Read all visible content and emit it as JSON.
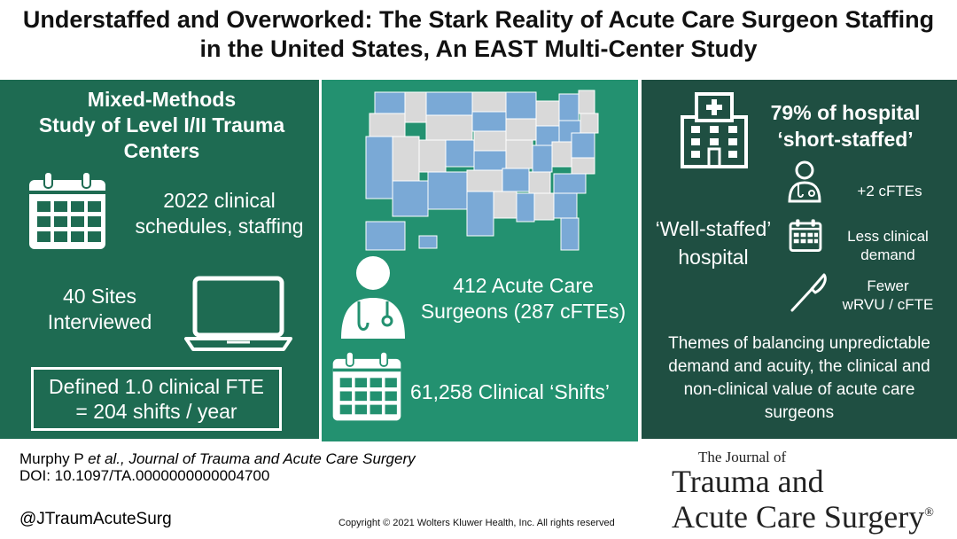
{
  "title": {
    "line1": "Understaffed and Overworked: The Stark Reality of Acute Care Surgeon Staffing",
    "line2": "in the United States, An EAST Multi-Center Study"
  },
  "left_panel": {
    "heading_line1": "Mixed-Methods",
    "heading_line2": "Study of Level I/II Trauma",
    "heading_line3": "Centers",
    "schedules_line1": "2022 clinical",
    "schedules_line2": "schedules, staffing",
    "sites_line1": "40 Sites",
    "sites_line2": "Interviewed",
    "fte_line1": "Defined 1.0 clinical FTE",
    "fte_line2": "= 204 shifts / year"
  },
  "middle_panel": {
    "surgeons_line1": "412 Acute Care",
    "surgeons_line2": "Surgeons (287 cFTEs)",
    "shifts": "61,258 Clinical ‘Shifts’",
    "map_colors": {
      "participating": "#7aa9d6",
      "other": "#d9d9d9",
      "border": "#ffffff"
    }
  },
  "right_panel": {
    "short_staffed_line1": "79% of hospital",
    "short_staffed_line2": "‘short-staffed’",
    "well_staffed_line1": "‘Well-staffed’",
    "well_staffed_line2": "hospital",
    "fte_gain": "+2 cFTEs",
    "demand_line1": "Less clinical",
    "demand_line2": "demand",
    "wrvu_line1": "Fewer",
    "wrvu_line2": "wRVU / cFTE",
    "themes_line1": "Themes of balancing unpredictable",
    "themes_line2": "demand and acuity, the clinical and",
    "themes_line3": "non-clinical value of acute care",
    "themes_line4": "surgeons"
  },
  "footer": {
    "citation_author": "Murphy P ",
    "citation_journal": "et al., Journal of Trauma and Acute Care Surgery",
    "doi": "DOI: 10.1097/TA.0000000000004700",
    "handle": "@JTraumAcuteSurg",
    "copyright": "Copyright © 2021  Wolters Kluwer Health, Inc. All rights reserved",
    "journal_small": "The Journal of",
    "journal_line1": "Trauma and",
    "journal_line2": "Acute Care Surgery",
    "registered": "®"
  },
  "colors": {
    "left_panel": "#1e6b52",
    "middle_panel": "#239170",
    "right_panel": "#1f4f42"
  }
}
